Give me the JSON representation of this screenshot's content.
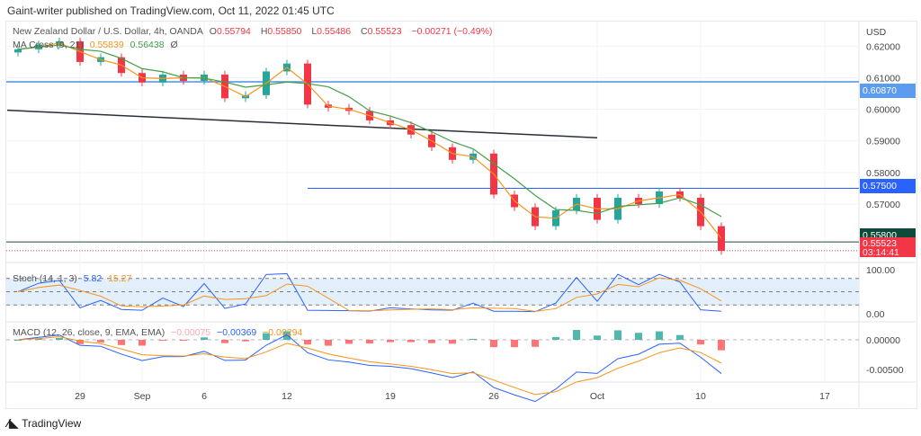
{
  "header": {
    "published": "Gaint-writer published on TradingView.com, Oct 11, 2022 01:45 UTC"
  },
  "legend": {
    "symbol": "New Zealand Dollar / U.S. Dollar, 4h, OANDA",
    "o_label": "O",
    "o": "0.55794",
    "h_label": "H",
    "h": "0.55850",
    "l_label": "L",
    "l": "0.55486",
    "c_label": "C",
    "c": "0.55523",
    "change": "−0.00271 (−0.49%)",
    "ma_name": "MA Cross (9, 21)",
    "ma_fast": "0.55839",
    "ma_slow": "0.56438",
    "ma_extra": "Ø",
    "stoch_name": "Stoch (14, 1, 3)",
    "stoch_k": "5.82",
    "stoch_d": "15.27",
    "macd_name": "MACD (12, 26, close, 9, EMA, EMA)",
    "macd_hist": "−0.00075",
    "macd_line": "−0.00369",
    "macd_signal": "−0.00294"
  },
  "colors": {
    "up": "#26a69a",
    "down": "#f23645",
    "ma_fast": "#f7931a",
    "ma_slow": "#43a047",
    "stoch_k": "#2962ff",
    "stoch_d": "#f7931a",
    "hline_blue": "#4a90e2",
    "hline_green": "#1b4d3e"
  },
  "chart_data": {
    "type": "candlestick",
    "currency": "USD",
    "dates": [
      "Aug 24",
      "Aug 25",
      "Aug 26",
      "Aug 29",
      "Aug 30",
      "Aug 31",
      "Sep 1",
      "Sep 2",
      "Sep 5",
      "Sep 6",
      "Sep 7",
      "Sep 8",
      "Sep 9",
      "Sep 12",
      "Sep 13",
      "Sep 14",
      "Sep 15",
      "Sep 16",
      "Sep 19",
      "Sep 20",
      "Sep 21",
      "Sep 22",
      "Sep 23",
      "Sep 26",
      "Sep 27",
      "Sep 28",
      "Sep 29",
      "Sep 30",
      "Oct 3",
      "Oct 4",
      "Oct 5",
      "Oct 6",
      "Oct 7",
      "Oct 10",
      "Oct 11"
    ],
    "close": [
      0.619,
      0.6205,
      0.6215,
      0.615,
      0.6165,
      0.6115,
      0.6085,
      0.611,
      0.609,
      0.611,
      0.6035,
      0.6045,
      0.612,
      0.6145,
      0.6015,
      0.6005,
      0.5995,
      0.5965,
      0.595,
      0.592,
      0.588,
      0.584,
      0.586,
      0.573,
      0.569,
      0.563,
      0.568,
      0.572,
      0.565,
      0.572,
      0.57,
      0.574,
      0.572,
      0.563,
      0.5552
    ],
    "price_ticks": [
      "0.62000",
      "0.61000",
      "0.60000",
      "0.59000",
      "0.58000",
      "0.57000"
    ],
    "ylim": [
      0.5515,
      0.6275
    ],
    "x_ticks": [
      {
        "label": "29",
        "date": "Aug 29"
      },
      {
        "label": "Sep",
        "date": "Sep 1"
      },
      {
        "label": "6",
        "date": "Sep 6"
      },
      {
        "label": "12",
        "date": "Sep 12"
      },
      {
        "label": "19",
        "date": "Sep 19"
      },
      {
        "label": "26",
        "date": "Sep 26"
      },
      {
        "label": "Oct",
        "date": "Oct 3"
      },
      {
        "label": "10",
        "date": "Oct 10"
      },
      {
        "label": "17",
        "date": "Oct 17"
      }
    ],
    "horizontal_levels": [
      {
        "price": "0.60870",
        "color": "#4a90e2"
      },
      {
        "price": "0.57500",
        "color": "#2962ff",
        "from": "Sep 13"
      },
      {
        "price": "0.55800",
        "color": "#1b4d3e"
      }
    ],
    "trendline": {
      "from": {
        "date": "Aug 24",
        "price": 0.5997
      },
      "to": {
        "date": "Oct 3",
        "price": 0.591
      }
    },
    "last_price": "0.55523",
    "countdown": "03:14:41",
    "stoch_ticks": [
      "100.00",
      "0.00"
    ],
    "macd_ticks": [
      "0.00000",
      "-0.00500"
    ]
  },
  "footer": {
    "logo": "TradingView"
  }
}
